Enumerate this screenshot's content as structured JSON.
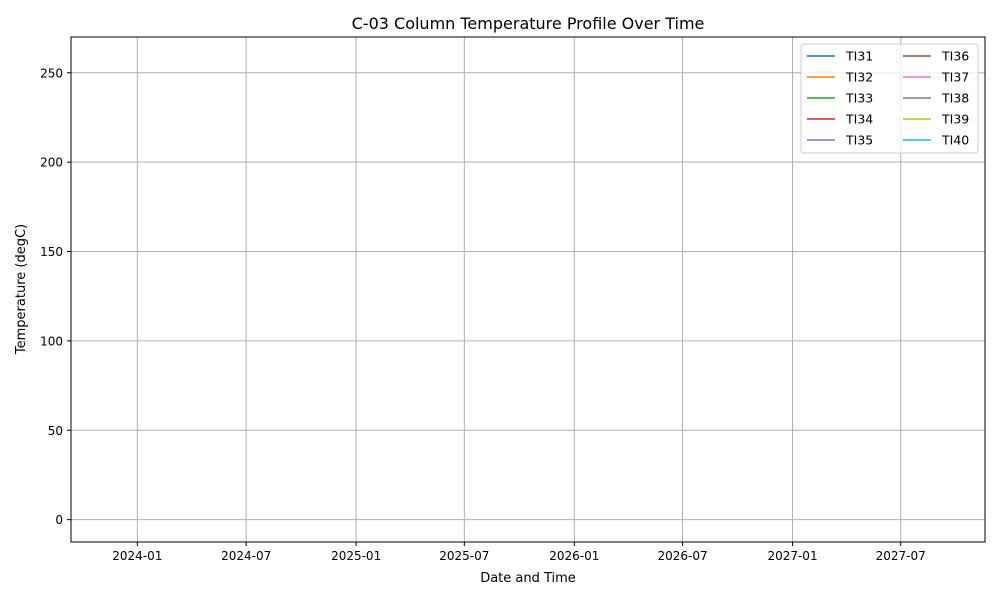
{
  "chart_data": {
    "type": "line",
    "title": "C-03 Column Temperature Profile Over Time",
    "xlabel": "Date and Time",
    "ylabel": "Temperature (degC)",
    "x_type": "date",
    "xlim": [
      "2023-09-12",
      "2027-11-19"
    ],
    "ylim": [
      -12.5,
      270
    ],
    "x_ticks": [
      "2024-01-01",
      "2024-07-01",
      "2025-01-01",
      "2025-07-01",
      "2026-01-01",
      "2026-07-01",
      "2027-01-01",
      "2027-07-01"
    ],
    "x_tick_labels": [
      "2024-01",
      "2024-07",
      "2025-01",
      "2025-07",
      "2026-01",
      "2026-07",
      "2027-01",
      "2027-07"
    ],
    "y_ticks": [
      0,
      50,
      100,
      150,
      200,
      250
    ],
    "y_tick_labels": [
      "0",
      "50",
      "100",
      "150",
      "200",
      "250"
    ],
    "grid": true,
    "legend_position": "top-right",
    "legend_columns": 2,
    "series": [
      {
        "name": "TI31",
        "color": "#1f77b4",
        "values": []
      },
      {
        "name": "TI32",
        "color": "#ff7f0e",
        "values": []
      },
      {
        "name": "TI33",
        "color": "#2ca02c",
        "values": []
      },
      {
        "name": "TI34",
        "color": "#d62728",
        "values": []
      },
      {
        "name": "TI35",
        "color": "#9467bd",
        "values": []
      },
      {
        "name": "TI36",
        "color": "#8c564b",
        "values": []
      },
      {
        "name": "TI37",
        "color": "#e377c2",
        "values": []
      },
      {
        "name": "TI38",
        "color": "#7f7f7f",
        "values": []
      },
      {
        "name": "TI39",
        "color": "#bcbd22",
        "values": []
      },
      {
        "name": "TI40",
        "color": "#17becf",
        "values": []
      }
    ]
  }
}
